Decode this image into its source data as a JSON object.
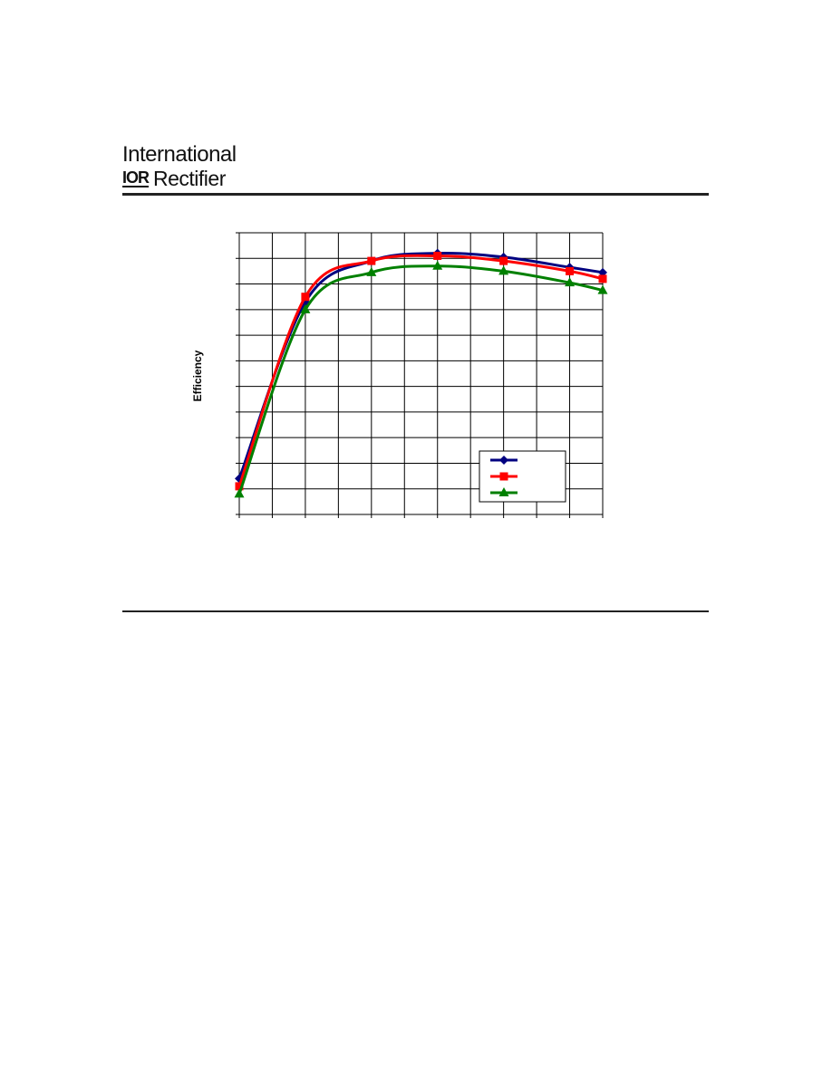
{
  "header": {
    "brand_line1": "International",
    "brand_logo_text": "IOR",
    "brand_line2": "Rectifier"
  },
  "chart_data": {
    "type": "line",
    "title": "",
    "xlabel": "",
    "ylabel": "Efficiency",
    "grid": true,
    "legend_placement": "bottom-right",
    "x": [
      0,
      1,
      2,
      3,
      4,
      5,
      6,
      7,
      8,
      9,
      10,
      11
    ],
    "xlim": [
      0,
      11
    ],
    "ylim": [
      0,
      11
    ],
    "series": [
      {
        "color": "#000080",
        "marker": "diamond",
        "points": [
          [
            0,
            1.4
          ],
          [
            2,
            8.3
          ],
          [
            4,
            9.9
          ],
          [
            6,
            10.2
          ],
          [
            8,
            10.05
          ],
          [
            10,
            9.65
          ],
          [
            11,
            9.45
          ]
        ]
      },
      {
        "color": "#ff0000",
        "marker": "square",
        "points": [
          [
            0,
            1.1
          ],
          [
            2,
            8.5
          ],
          [
            4,
            9.9
          ],
          [
            6,
            10.1
          ],
          [
            8,
            9.9
          ],
          [
            10,
            9.5
          ],
          [
            11,
            9.2
          ]
        ]
      },
      {
        "color": "#008000",
        "marker": "triangle",
        "points": [
          [
            0,
            0.8
          ],
          [
            2,
            8.0
          ],
          [
            4,
            9.45
          ],
          [
            6,
            9.7
          ],
          [
            8,
            9.5
          ],
          [
            10,
            9.05
          ],
          [
            11,
            8.75
          ]
        ]
      }
    ]
  }
}
